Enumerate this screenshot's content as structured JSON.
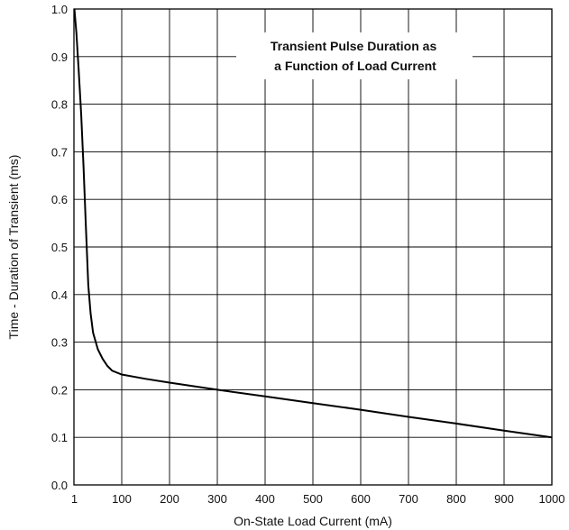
{
  "chart_data": {
    "type": "line",
    "title_lines": [
      "Transient Pulse Duration as",
      "a Function of Load Current"
    ],
    "xlabel": "On-State Load Current (mA)",
    "ylabel": "Time - Duration of Transient (ms)",
    "xlim": [
      0,
      1000
    ],
    "ylim": [
      0,
      1
    ],
    "grid": true,
    "x_ticks": [
      {
        "value": 1,
        "label": "1"
      },
      {
        "value": 100,
        "label": "100"
      },
      {
        "value": 200,
        "label": "200"
      },
      {
        "value": 300,
        "label": "300"
      },
      {
        "value": 400,
        "label": "400"
      },
      {
        "value": 500,
        "label": "500"
      },
      {
        "value": 600,
        "label": "600"
      },
      {
        "value": 700,
        "label": "700"
      },
      {
        "value": 800,
        "label": "800"
      },
      {
        "value": 900,
        "label": "900"
      },
      {
        "value": 1000,
        "label": "1000"
      }
    ],
    "y_ticks": [
      {
        "value": 0,
        "label": "0.0"
      },
      {
        "value": 0.1,
        "label": "0.1"
      },
      {
        "value": 0.2,
        "label": "0.2"
      },
      {
        "value": 0.3,
        "label": "0.3"
      },
      {
        "value": 0.4,
        "label": "0.4"
      },
      {
        "value": 0.5,
        "label": "0.5"
      },
      {
        "value": 0.6,
        "label": "0.6"
      },
      {
        "value": 0.7,
        "label": "0.7"
      },
      {
        "value": 0.8,
        "label": "0.8"
      },
      {
        "value": 0.9,
        "label": "0.9"
      },
      {
        "value": 1.0,
        "label": "1.0"
      }
    ],
    "series": [
      {
        "points": [
          [
            1,
            1.0
          ],
          [
            5,
            0.95
          ],
          [
            10,
            0.87
          ],
          [
            15,
            0.78
          ],
          [
            20,
            0.67
          ],
          [
            25,
            0.54
          ],
          [
            30,
            0.42
          ],
          [
            35,
            0.36
          ],
          [
            40,
            0.32
          ],
          [
            50,
            0.285
          ],
          [
            60,
            0.265
          ],
          [
            70,
            0.25
          ],
          [
            80,
            0.24
          ],
          [
            100,
            0.232
          ],
          [
            150,
            0.223
          ],
          [
            200,
            0.215
          ],
          [
            300,
            0.2
          ],
          [
            400,
            0.186
          ],
          [
            500,
            0.172
          ],
          [
            600,
            0.158
          ],
          [
            700,
            0.143
          ],
          [
            800,
            0.129
          ],
          [
            900,
            0.114
          ],
          [
            1000,
            0.1
          ]
        ]
      }
    ]
  }
}
